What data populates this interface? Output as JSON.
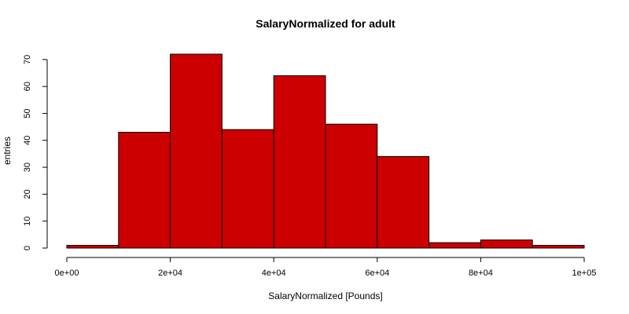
{
  "chart_data": {
    "type": "bar",
    "title": "SalaryNormalized for adult",
    "xlabel": "SalaryNormalized [Pounds]",
    "ylabel": "entries",
    "bins": [
      {
        "x0": 0,
        "x1": 10000,
        "count": 1
      },
      {
        "x0": 10000,
        "x1": 20000,
        "count": 43
      },
      {
        "x0": 20000,
        "x1": 30000,
        "count": 72
      },
      {
        "x0": 30000,
        "x1": 40000,
        "count": 44
      },
      {
        "x0": 40000,
        "x1": 50000,
        "count": 64
      },
      {
        "x0": 50000,
        "x1": 60000,
        "count": 46
      },
      {
        "x0": 60000,
        "x1": 70000,
        "count": 34
      },
      {
        "x0": 70000,
        "x1": 80000,
        "count": 2
      },
      {
        "x0": 80000,
        "x1": 90000,
        "count": 3
      },
      {
        "x0": 90000,
        "x1": 100000,
        "count": 1
      }
    ],
    "xlim": [
      0,
      100000
    ],
    "ylim": [
      0,
      72
    ],
    "x_ticks": [
      0,
      20000,
      40000,
      60000,
      80000,
      100000
    ],
    "x_tick_labels": [
      "0e+00",
      "2e+04",
      "4e+04",
      "6e+04",
      "8e+04",
      "1e+05"
    ],
    "y_ticks": [
      0,
      10,
      20,
      30,
      40,
      50,
      60,
      70
    ],
    "y_tick_labels": [
      "0",
      "10",
      "20",
      "30",
      "40",
      "50",
      "60",
      "70"
    ],
    "bar_color": "#cc0000",
    "grid": false
  }
}
